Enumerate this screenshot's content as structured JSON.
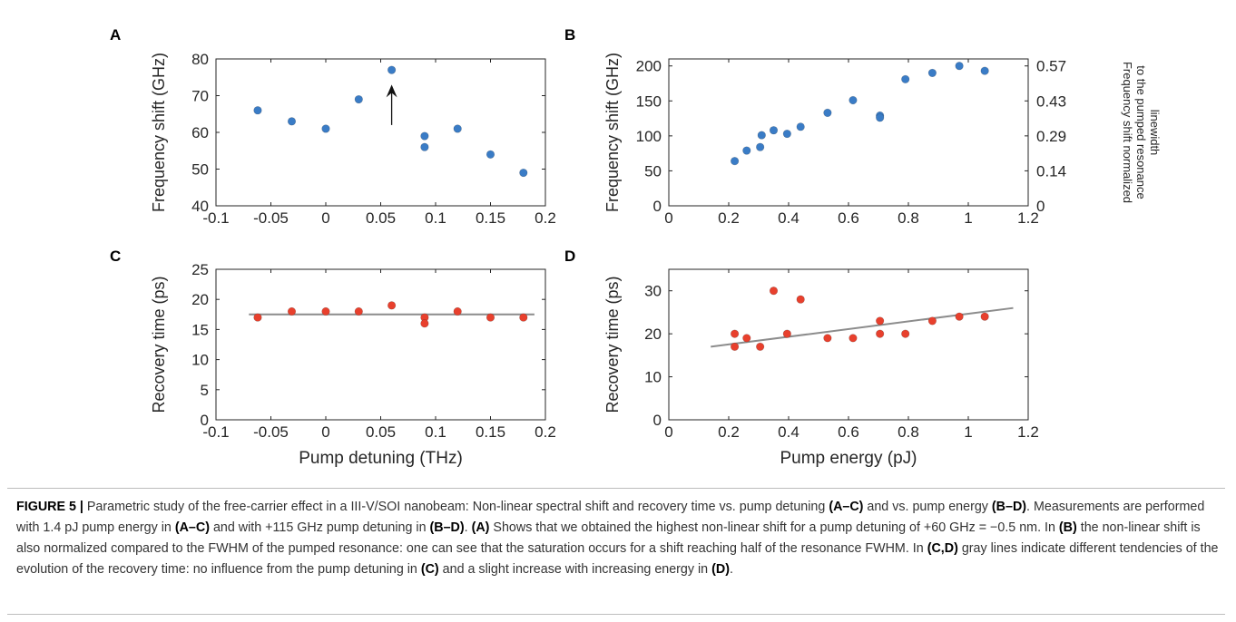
{
  "colors": {
    "blue": "#3a7cc6",
    "red": "#e8402d",
    "gray": "#8c8c8c",
    "axis": "#262626"
  },
  "chart_data": [
    {
      "panel": "A",
      "type": "scatter",
      "xlim": [
        -0.1,
        0.2
      ],
      "ylim": [
        40,
        80
      ],
      "xticks": [
        "-0.1",
        "-0.05",
        "0",
        "0.05",
        "0.1",
        "0.15",
        "0.2"
      ],
      "yticks": [
        "40",
        "50",
        "60",
        "70",
        "80"
      ],
      "xlabel": "",
      "ylabel": "Frequency shift (GHz)",
      "series": [
        {
          "color": "blue",
          "points": [
            [
              -0.062,
              66
            ],
            [
              -0.031,
              63
            ],
            [
              0,
              61
            ],
            [
              0.03,
              69
            ],
            [
              0.06,
              77
            ],
            [
              0.09,
              59
            ],
            [
              0.09,
              56
            ],
            [
              0.12,
              61
            ],
            [
              0.15,
              54
            ],
            [
              0.18,
              49
            ]
          ]
        }
      ],
      "arrow": {
        "x": 0.06,
        "y_from": 62,
        "y_to": 73
      }
    },
    {
      "panel": "B",
      "type": "scatter",
      "xlim": [
        0,
        1.2
      ],
      "ylim": [
        0,
        210
      ],
      "xticks": [
        "0",
        "0.2",
        "0.4",
        "0.6",
        "0.8",
        "1",
        "1.2"
      ],
      "yticks": [
        "0",
        "50",
        "100",
        "150",
        "200"
      ],
      "xlabel": "",
      "ylabel": "Frequency shift (GHz)",
      "y2ticks": [
        "0",
        "0.14",
        "0.29",
        "0.43",
        "0.57"
      ],
      "y2label_lines": [
        "Frequency shift normalized",
        "to the pumped resonance",
        "linewidth"
      ],
      "series": [
        {
          "color": "blue",
          "points": [
            [
              0.22,
              64
            ],
            [
              0.26,
              79
            ],
            [
              0.305,
              84
            ],
            [
              0.31,
              101
            ],
            [
              0.35,
              108
            ],
            [
              0.395,
              103
            ],
            [
              0.44,
              113
            ],
            [
              0.53,
              133
            ],
            [
              0.615,
              151
            ],
            [
              0.705,
              129
            ],
            [
              0.705,
              126
            ],
            [
              0.79,
              181
            ],
            [
              0.88,
              190
            ],
            [
              0.97,
              200
            ],
            [
              1.055,
              193
            ]
          ]
        }
      ]
    },
    {
      "panel": "C",
      "type": "scatter",
      "xlim": [
        -0.1,
        0.2
      ],
      "ylim": [
        0,
        25
      ],
      "xticks": [
        "-0.1",
        "-0.05",
        "0",
        "0.05",
        "0.1",
        "0.15",
        "0.2"
      ],
      "yticks": [
        "0",
        "5",
        "10",
        "15",
        "20",
        "25"
      ],
      "xlabel": "Pump detuning (THz)",
      "ylabel": "Recovery time (ps)",
      "series": [
        {
          "color": "red",
          "points": [
            [
              -0.062,
              17
            ],
            [
              -0.031,
              18
            ],
            [
              0,
              18
            ],
            [
              0.03,
              18
            ],
            [
              0.06,
              19
            ],
            [
              0.09,
              17
            ],
            [
              0.09,
              16
            ],
            [
              0.12,
              18
            ],
            [
              0.15,
              17
            ],
            [
              0.18,
              17
            ]
          ]
        }
      ],
      "trend": {
        "x": [
          -0.07,
          0.19
        ],
        "y": [
          17.5,
          17.5
        ]
      }
    },
    {
      "panel": "D",
      "type": "scatter",
      "xlim": [
        0,
        1.2
      ],
      "ylim": [
        0,
        35
      ],
      "xticks": [
        "0",
        "0.2",
        "0.4",
        "0.6",
        "0.8",
        "1",
        "1.2"
      ],
      "yticks": [
        "0",
        "10",
        "20",
        "30"
      ],
      "xlabel": "Pump energy (pJ)",
      "ylabel": "Recovery time (ps)",
      "series": [
        {
          "color": "red",
          "points": [
            [
              0.22,
              20
            ],
            [
              0.22,
              17
            ],
            [
              0.26,
              19
            ],
            [
              0.305,
              17
            ],
            [
              0.35,
              30
            ],
            [
              0.395,
              20
            ],
            [
              0.44,
              28
            ],
            [
              0.53,
              19
            ],
            [
              0.615,
              19
            ],
            [
              0.705,
              23
            ],
            [
              0.705,
              20
            ],
            [
              0.79,
              20
            ],
            [
              0.88,
              23
            ],
            [
              0.97,
              24
            ],
            [
              1.055,
              24
            ]
          ]
        }
      ],
      "trend": {
        "x": [
          0.14,
          1.15
        ],
        "y": [
          17,
          26
        ]
      }
    }
  ],
  "caption": {
    "label": "FIGURE 5 |",
    "segments": [
      {
        "t": " Parametric study of the free-carrier effect in a III-V/SOI nanobeam: Non-linear spectral shift and recovery time vs. pump detuning ",
        "b": false
      },
      {
        "t": "(A–C)",
        "b": true
      },
      {
        "t": " and vs. pump energy ",
        "b": false
      },
      {
        "t": "(B–D)",
        "b": true
      },
      {
        "t": ". Measurements are performed with 1.4 pJ pump energy in ",
        "b": false
      },
      {
        "t": "(A–C)",
        "b": true
      },
      {
        "t": " and with +115 GHz pump detuning in ",
        "b": false
      },
      {
        "t": "(B–D)",
        "b": true
      },
      {
        "t": ". ",
        "b": false
      },
      {
        "t": "(A)",
        "b": true
      },
      {
        "t": " Shows that we obtained the highest non-linear shift for a pump detuning of +60 GHz = −0.5 nm. In ",
        "b": false
      },
      {
        "t": "(B)",
        "b": true
      },
      {
        "t": " the non-linear shift is also normalized compared to the FWHM of the pumped resonance: one can see that the saturation occurs for a shift reaching half of the resonance FWHM. In ",
        "b": false
      },
      {
        "t": "(C,D)",
        "b": true
      },
      {
        "t": " gray lines indicate different tendencies of the evolution of the recovery time: no influence from the pump detuning in ",
        "b": false
      },
      {
        "t": "(C)",
        "b": true
      },
      {
        "t": " and a slight increase with increasing energy in ",
        "b": false
      },
      {
        "t": "(D)",
        "b": true
      },
      {
        "t": ".",
        "b": false
      }
    ]
  }
}
